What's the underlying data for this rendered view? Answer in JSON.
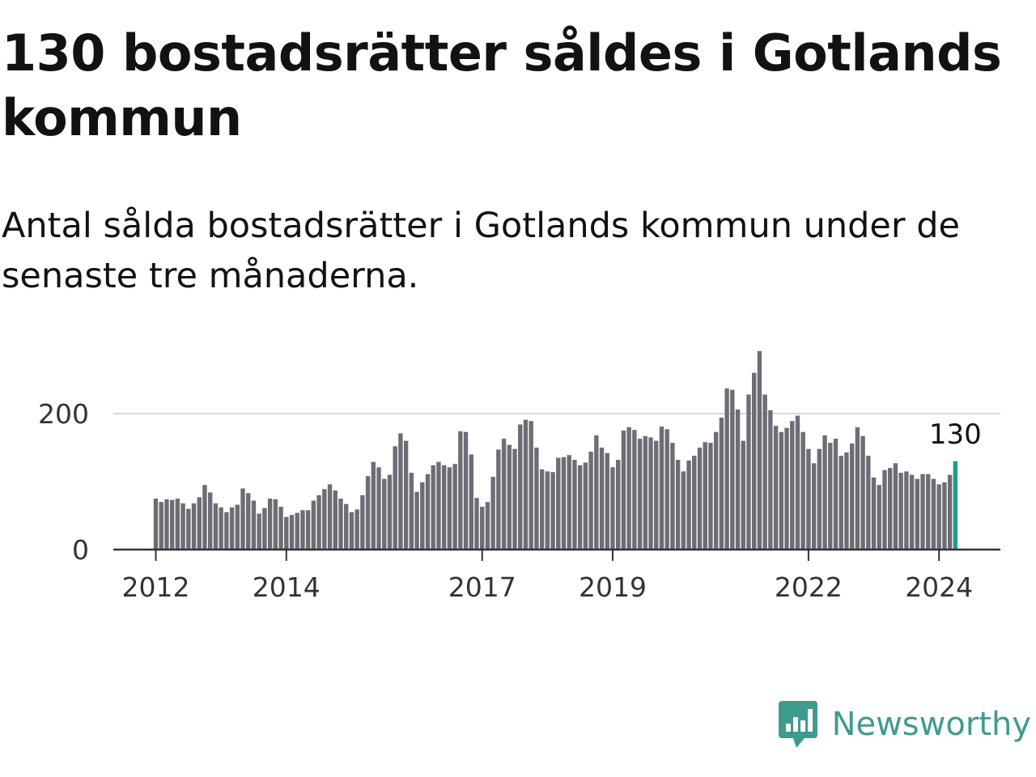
{
  "title": "130 bostadsrätter såldes i Gotlands kommun",
  "subtitle": "Antal sålda bostadsrätter i Gotlands kommun under de senaste tre månaderna.",
  "brand": {
    "name": "Newsworthy",
    "color": "#3d9c8d",
    "icon": "newsworthy-chart-bubble-icon"
  },
  "colors": {
    "bar": "#6e6d75",
    "highlight": "#1c9e8c",
    "grid": "#d9d9d9",
    "axis": "#333333"
  },
  "chart_data": {
    "type": "bar",
    "title": "130 bostadsrätter såldes i Gotlands kommun",
    "subtitle": "Antal sålda bostadsrätter i Gotlands kommun under de senaste tre månaderna.",
    "xlabel": "",
    "ylabel": "",
    "x_start": "2012-01",
    "x_step": "1 month",
    "ylim": [
      0,
      300
    ],
    "yticks": [
      0,
      200
    ],
    "xticks": [
      "2012",
      "2014",
      "2017",
      "2019",
      "2022",
      "2024"
    ],
    "grid": "horizontal",
    "legend": "none",
    "highlight_last": true,
    "annotations": [
      {
        "text": "130",
        "series_point": "last"
      }
    ],
    "values": [
      75,
      70,
      74,
      73,
      75,
      68,
      60,
      68,
      77,
      95,
      84,
      68,
      62,
      55,
      62,
      66,
      90,
      83,
      72,
      53,
      61,
      75,
      74,
      63,
      48,
      51,
      54,
      58,
      58,
      72,
      80,
      89,
      96,
      87,
      75,
      67,
      55,
      59,
      80,
      108,
      129,
      121,
      104,
      110,
      152,
      171,
      160,
      113,
      85,
      99,
      111,
      124,
      129,
      124,
      121,
      126,
      174,
      173,
      140,
      76,
      63,
      70,
      107,
      147,
      163,
      154,
      148,
      184,
      191,
      189,
      150,
      118,
      115,
      114,
      135,
      136,
      139,
      132,
      124,
      128,
      144,
      168,
      150,
      142,
      121,
      132,
      175,
      180,
      176,
      163,
      167,
      165,
      160,
      181,
      177,
      157,
      132,
      115,
      131,
      138,
      150,
      158,
      157,
      173,
      194,
      237,
      235,
      206,
      160,
      228,
      260,
      292,
      228,
      205,
      182,
      173,
      179,
      189,
      197,
      173,
      148,
      127,
      148,
      168,
      157,
      163,
      138,
      143,
      156,
      180,
      167,
      138,
      106,
      95,
      117,
      120,
      127,
      113,
      115,
      110,
      104,
      111,
      111,
      104,
      96,
      99,
      110,
      130
    ]
  }
}
